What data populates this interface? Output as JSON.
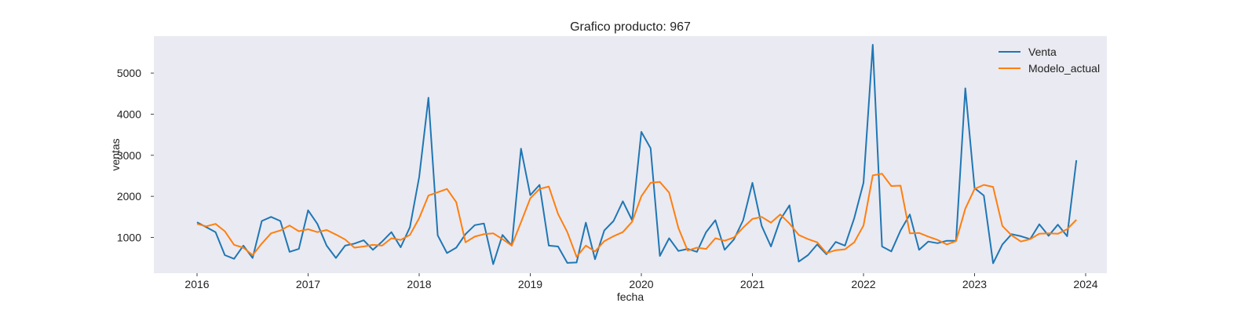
{
  "chart_data": {
    "type": "line",
    "title": "Grafico producto: 967",
    "xlabel": "fecha",
    "ylabel": "ventas",
    "x_start": "2016-01",
    "x_step": "1 month",
    "xticks": [
      "2016",
      "2017",
      "2018",
      "2019",
      "2020",
      "2021",
      "2022",
      "2023",
      "2024"
    ],
    "yticks": [
      "1000",
      "2000",
      "3000",
      "4000",
      "5000"
    ],
    "ylim": [
      130,
      5900
    ],
    "grid": false,
    "legend_position": "upper-right",
    "series": [
      {
        "name": "Venta",
        "color": "#1f77b4",
        "values": [
          1370,
          1250,
          1130,
          570,
          480,
          800,
          500,
          1400,
          1500,
          1400,
          650,
          720,
          1660,
          1330,
          800,
          500,
          800,
          850,
          930,
          700,
          900,
          1130,
          760,
          1250,
          2470,
          4400,
          1050,
          620,
          750,
          1080,
          1300,
          1340,
          350,
          1060,
          800,
          3160,
          2030,
          2280,
          800,
          780,
          380,
          390,
          1360,
          470,
          1170,
          1400,
          1880,
          1420,
          3570,
          3170,
          550,
          980,
          670,
          720,
          650,
          1130,
          1420,
          700,
          950,
          1420,
          2330,
          1280,
          780,
          1430,
          1780,
          410,
          570,
          830,
          590,
          890,
          800,
          1470,
          2330,
          5690,
          780,
          660,
          1170,
          1560,
          700,
          900,
          860,
          920,
          920,
          4630,
          2200,
          2020,
          370,
          830,
          1080,
          1030,
          960,
          1320,
          1040,
          1310,
          1030,
          2880
        ]
      },
      {
        "name": "Modelo_actual",
        "color": "#ff7f0e",
        "values": [
          1330,
          1270,
          1330,
          1150,
          820,
          750,
          570,
          850,
          1100,
          1170,
          1290,
          1150,
          1200,
          1130,
          1180,
          1070,
          950,
          750,
          780,
          820,
          800,
          980,
          940,
          1060,
          1470,
          2020,
          2100,
          2180,
          1860,
          880,
          1020,
          1080,
          1100,
          960,
          800,
          1370,
          1950,
          2180,
          2240,
          1570,
          1130,
          530,
          800,
          660,
          910,
          1030,
          1130,
          1380,
          2000,
          2330,
          2350,
          2090,
          1230,
          680,
          750,
          720,
          980,
          920,
          1000,
          1240,
          1450,
          1500,
          1360,
          1560,
          1340,
          1060,
          960,
          880,
          620,
          690,
          710,
          880,
          1290,
          2510,
          2550,
          2250,
          2260,
          1100,
          1110,
          1020,
          940,
          830,
          910,
          1700,
          2180,
          2280,
          2230,
          1280,
          1050,
          900,
          960,
          1090,
          1100,
          1090,
          1200,
          1430
        ]
      }
    ]
  }
}
